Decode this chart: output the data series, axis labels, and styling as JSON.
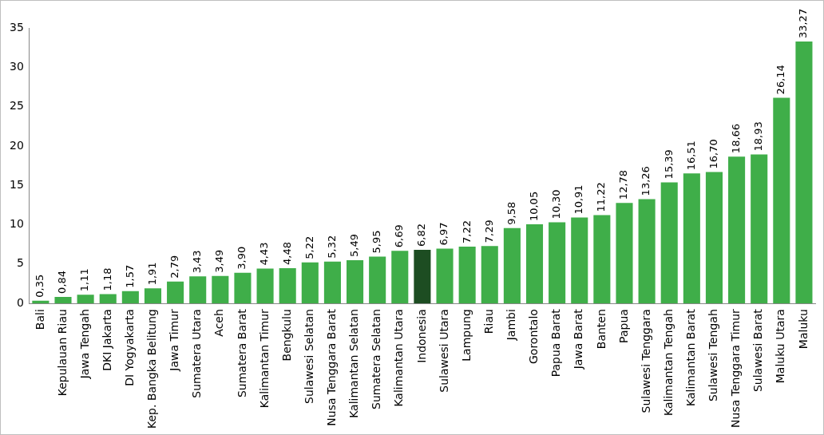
{
  "chart_data": {
    "type": "bar",
    "categories": [
      "Bali",
      "Kepulauan Riau",
      "Jawa Tengah",
      "DKI Jakarta",
      "DI Yogyakarta",
      "Kep. Bangka Belitung",
      "Jawa Timur",
      "Sumatera Utara",
      "Aceh",
      "Sumatera Barat",
      "Kalimantan Timur",
      "Bengkulu",
      "Sulawesi Selatan",
      "Nusa Tenggara Barat",
      "Kalimantan Selatan",
      "Sumatera Selatan",
      "Kalimantan Utara",
      "Indonesia",
      "Sulawesi Utara",
      "Lampung",
      "Riau",
      "Jambi",
      "Gorontalo",
      "Papua Barat",
      "Jawa Barat",
      "Banten",
      "Papua",
      "Sulawesi Tenggara",
      "Kalimantan Tengah",
      "Kalimantan Barat",
      "Sulawesi Tengah",
      "Nusa Tenggara Timur",
      "Sulawesi Barat",
      "Maluku Utara",
      "Maluku"
    ],
    "values": [
      0.35,
      0.84,
      1.11,
      1.18,
      1.57,
      1.91,
      2.79,
      3.43,
      3.49,
      3.9,
      4.43,
      4.48,
      5.22,
      5.32,
      5.49,
      5.95,
      6.69,
      6.82,
      6.97,
      7.22,
      7.29,
      9.58,
      10.05,
      10.3,
      10.91,
      11.22,
      12.78,
      13.26,
      15.39,
      16.51,
      16.7,
      18.66,
      18.93,
      26.14,
      33.27
    ],
    "value_labels": [
      "0,35",
      "0,84",
      "1,11",
      "1,18",
      "1,57",
      "1,91",
      "2,79",
      "3,43",
      "3,49",
      "3,90",
      "4,43",
      "4,48",
      "5,22",
      "5,32",
      "5,49",
      "5,95",
      "6,69",
      "6,82",
      "6,97",
      "7,22",
      "7,29",
      "9,58",
      "10,05",
      "10,30",
      "10,91",
      "11,22",
      "12,78",
      "13,26",
      "15,39",
      "16,51",
      "16,70",
      "18,66",
      "18,93",
      "26,14",
      "33,27"
    ],
    "colors": [
      "#3fae49",
      "#3fae49",
      "#3fae49",
      "#3fae49",
      "#3fae49",
      "#3fae49",
      "#3fae49",
      "#3fae49",
      "#3fae49",
      "#3fae49",
      "#3fae49",
      "#3fae49",
      "#3fae49",
      "#3fae49",
      "#3fae49",
      "#3fae49",
      "#3fae49",
      "#1d4d22",
      "#3fae49",
      "#3fae49",
      "#3fae49",
      "#3fae49",
      "#3fae49",
      "#3fae49",
      "#3fae49",
      "#3fae49",
      "#3fae49",
      "#3fae49",
      "#3fae49",
      "#3fae49",
      "#3fae49",
      "#3fae49",
      "#3fae49",
      "#3fae49",
      "#3fae49"
    ],
    "ylim": [
      0,
      35
    ],
    "yticks": [
      0,
      5,
      10,
      15,
      20,
      25,
      30,
      35
    ],
    "grid": false,
    "legend": false
  }
}
